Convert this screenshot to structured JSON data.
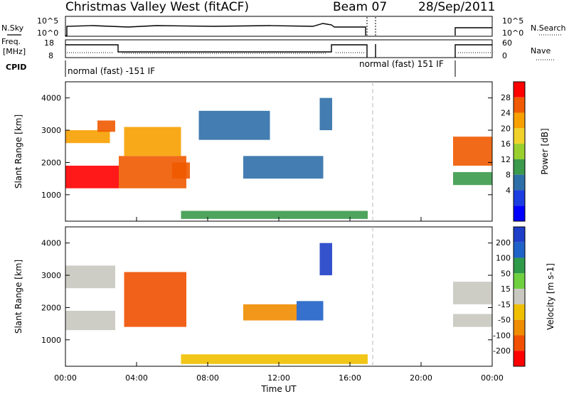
{
  "header": {
    "station": "Christmas Valley West (fitACF)",
    "beam": "Beam 07",
    "date": "28/Sep/2011"
  },
  "top_panels": {
    "nsky_label": "N.Sky",
    "nsearch_label": "N.Search",
    "nsky_ticks": [
      "10^5",
      "10^0"
    ],
    "freq_label_line1": "Freq.",
    "freq_label_line2": "[MHz]",
    "freq_ticks": [
      "18",
      "8"
    ],
    "nave_label": "Nave",
    "nave_ticks": [
      "60",
      "0"
    ],
    "cpid_label": "CPID",
    "cpid_segments": [
      {
        "label": "normal (fast) -151 IF",
        "start_h": 0,
        "end_h": 17.15
      },
      {
        "label": "normal (fast) 151 IF",
        "start_h": 17.15,
        "end_h": 21.75
      }
    ]
  },
  "x_axis": {
    "label": "Time UT",
    "ticks": [
      "00:00",
      "04:00",
      "08:00",
      "12:00",
      "16:00",
      "20:00",
      "00:00"
    ]
  },
  "chart_data": [
    {
      "type": "heatmap",
      "panel": "power",
      "title": "",
      "xlabel": "Time UT",
      "ylabel": "Slant Range [km]",
      "xlim": [
        0,
        24
      ],
      "ylim": [
        180,
        4500
      ],
      "y_ticks": [
        1000,
        2000,
        3000,
        4000
      ],
      "colorbar_label": "Power [dB]",
      "colorbar_ticks": [
        "28",
        "24",
        "20",
        "16",
        "12",
        "8",
        "4"
      ],
      "colorbar_colors": [
        "#ff0000",
        "#f05a00",
        "#f7a000",
        "#f0d22a",
        "#9ad02e",
        "#3b9a4b",
        "#2f6fa8",
        "#1c3de0",
        "#0000ff"
      ],
      "data_gap_ut": [
        17.25,
        21.7
      ],
      "regions": [
        {
          "t0": 0.0,
          "t1": 2.5,
          "r0": 2600,
          "r1": 3000,
          "value": 20
        },
        {
          "t0": 1.8,
          "t1": 2.8,
          "r0": 2950,
          "r1": 3300,
          "value": 24
        },
        {
          "t0": 0.0,
          "t1": 3.0,
          "r0": 1200,
          "r1": 1900,
          "value": 28
        },
        {
          "t0": 3.0,
          "t1": 6.8,
          "r0": 1200,
          "r1": 2200,
          "value": 26
        },
        {
          "t0": 3.3,
          "t1": 6.5,
          "r0": 2200,
          "r1": 3100,
          "value": 20
        },
        {
          "t0": 6.0,
          "t1": 7.0,
          "r0": 1500,
          "r1": 2000,
          "value": 24
        },
        {
          "t0": 7.5,
          "t1": 11.5,
          "r0": 2700,
          "r1": 3600,
          "value": 6
        },
        {
          "t0": 10.0,
          "t1": 14.5,
          "r0": 1500,
          "r1": 2200,
          "value": 6
        },
        {
          "t0": 14.3,
          "t1": 15.0,
          "r0": 3000,
          "r1": 4000,
          "value": 5
        },
        {
          "t0": 6.5,
          "t1": 17.0,
          "r0": 250,
          "r1": 500,
          "value": 8
        },
        {
          "t0": 21.8,
          "t1": 24.0,
          "r0": 1900,
          "r1": 2800,
          "value": 26
        },
        {
          "t0": 21.8,
          "t1": 24.0,
          "r0": 1300,
          "r1": 1700,
          "value": 10
        }
      ]
    },
    {
      "type": "heatmap",
      "panel": "velocity",
      "title": "",
      "xlabel": "Time UT",
      "ylabel": "Slant Range [km]",
      "xlim": [
        0,
        24
      ],
      "ylim": [
        180,
        4500
      ],
      "y_ticks": [
        1000,
        2000,
        3000,
        4000
      ],
      "colorbar_label": "Velocity [m s-1]",
      "colorbar_ticks": [
        "200",
        "100",
        "50",
        "15",
        "-15",
        "-50",
        "-100",
        "-200"
      ],
      "colorbar_colors": [
        "#1f3fc8",
        "#1f62c8",
        "#2f9a4a",
        "#6fd040",
        "#c8c8c0",
        "#f0c000",
        "#f08c00",
        "#f05000",
        "#ff0000"
      ],
      "data_gap_ut": [
        17.25,
        21.7
      ],
      "regions": [
        {
          "t0": 0.0,
          "t1": 2.8,
          "r0": 1300,
          "r1": 1900,
          "value": 0
        },
        {
          "t0": 0.0,
          "t1": 2.8,
          "r0": 2600,
          "r1": 3300,
          "value": 0
        },
        {
          "t0": 3.3,
          "t1": 6.8,
          "r0": 1400,
          "r1": 3100,
          "value": -200
        },
        {
          "t0": 10.0,
          "t1": 13.0,
          "r0": 1600,
          "r1": 2100,
          "value": -80
        },
        {
          "t0": 13.0,
          "t1": 14.5,
          "r0": 1600,
          "r1": 2200,
          "value": 180
        },
        {
          "t0": 14.3,
          "t1": 15.0,
          "r0": 3000,
          "r1": 4000,
          "value": 200
        },
        {
          "t0": 6.5,
          "t1": 17.0,
          "r0": 250,
          "r1": 550,
          "value": -50
        },
        {
          "t0": 21.8,
          "t1": 24.0,
          "r0": 2100,
          "r1": 2800,
          "value": 0
        },
        {
          "t0": 21.8,
          "t1": 24.0,
          "r0": 1400,
          "r1": 1800,
          "value": 0
        }
      ]
    }
  ]
}
